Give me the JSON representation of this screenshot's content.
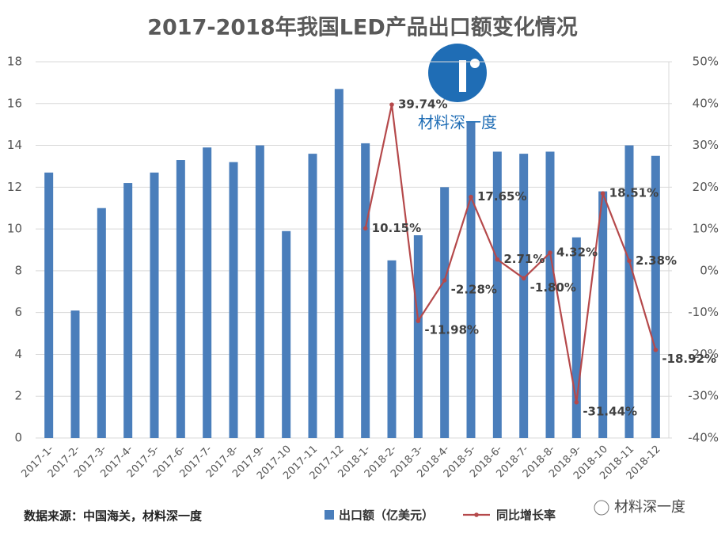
{
  "chart_data": {
    "type": "bar_line",
    "title": "2017-2018年我国LED产品出口额变化情况",
    "categories": [
      "2017-1-",
      "2017-2-",
      "2017-3-",
      "2017-4-",
      "2017-5-",
      "2017-6-",
      "2017-7-",
      "2017-8-",
      "2017-9-",
      "2017-10",
      "2017-11",
      "2017-12",
      "2018-1-",
      "2018-2-",
      "2018-3-",
      "2018-4-",
      "2018-5-",
      "2018-6-",
      "2018-7-",
      "2018-8-",
      "2018-9-",
      "2018-10",
      "2018-11",
      "2018-12"
    ],
    "series": [
      {
        "name": "出口额（亿美元）",
        "type": "bar",
        "color": "#4a7ebb",
        "values": [
          12.7,
          6.1,
          11.0,
          12.2,
          12.7,
          13.3,
          13.9,
          13.2,
          14.0,
          9.9,
          13.6,
          16.7,
          14.1,
          8.5,
          9.7,
          12.0,
          15.1,
          13.7,
          13.6,
          13.7,
          9.6,
          11.8,
          14.0,
          13.5
        ]
      },
      {
        "name": "同比增长率",
        "type": "line",
        "axis": "y2",
        "color": "#b5494b",
        "values": [
          null,
          null,
          null,
          null,
          null,
          null,
          null,
          null,
          null,
          null,
          null,
          null,
          10.15,
          39.74,
          -11.98,
          -2.28,
          17.65,
          2.71,
          -1.8,
          4.32,
          -31.44,
          18.51,
          2.38,
          -18.92
        ],
        "value_labels": [
          null,
          null,
          null,
          null,
          null,
          null,
          null,
          null,
          null,
          null,
          null,
          null,
          "10.15%",
          "39.74%",
          "-11.98%",
          "-2.28%",
          "17.65%",
          "2.71%",
          "-1.80%",
          "4.32%",
          "-31.44%",
          "18.51%",
          "2.38%",
          "-18.92%"
        ]
      }
    ],
    "ylim": [
      0,
      18
    ],
    "yticks": [
      0,
      2,
      4,
      6,
      8,
      10,
      12,
      14,
      16,
      18
    ],
    "y2lim": [
      -40,
      50
    ],
    "y2ticks": [
      {
        "value": -40,
        "label": "-40%"
      },
      {
        "value": -30,
        "label": "-30%"
      },
      {
        "value": -20,
        "label": "-20%"
      },
      {
        "value": -10,
        "label": "-10%"
      },
      {
        "value": 0,
        "label": "0%"
      },
      {
        "value": 10,
        "label": "10%"
      },
      {
        "value": 20,
        "label": "20%"
      },
      {
        "value": 30,
        "label": "30%"
      },
      {
        "value": 40,
        "label": "40%"
      },
      {
        "value": 50,
        "label": "50%"
      }
    ],
    "grid": true,
    "source": "数据来源：中国海关，材料深一度",
    "logo_text": "材料深一度",
    "wechat_text": "材料深一度"
  }
}
